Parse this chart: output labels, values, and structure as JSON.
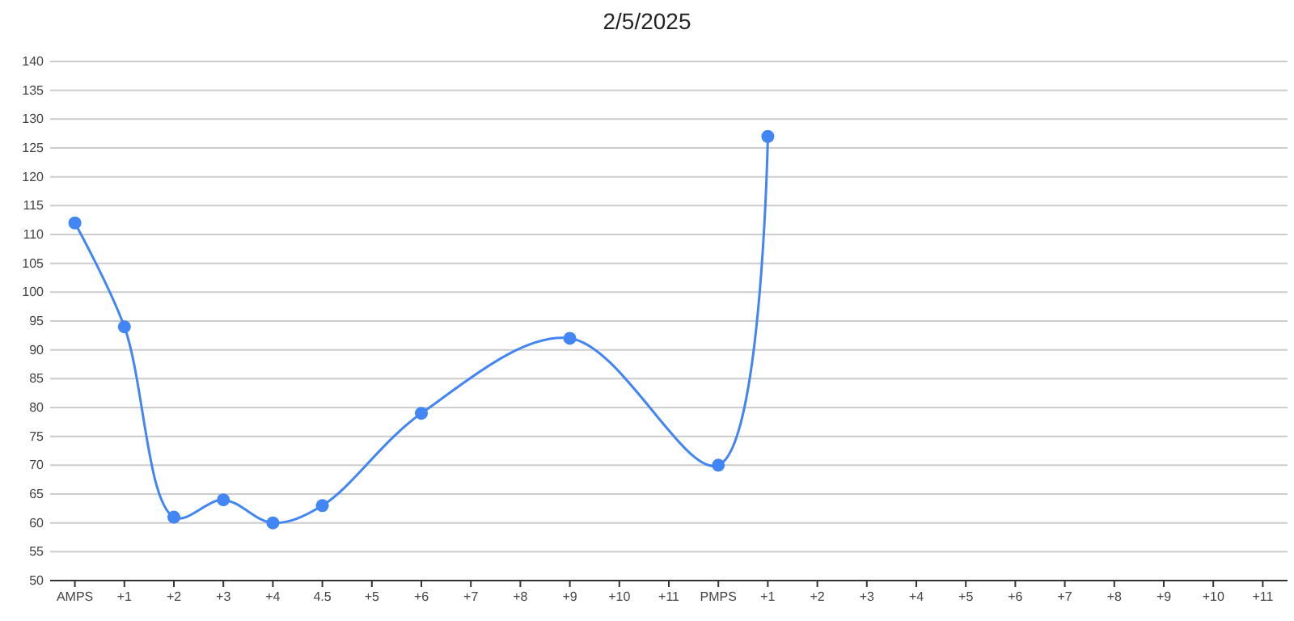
{
  "chart_data": {
    "type": "line",
    "title": "2/5/2025",
    "categories": [
      "AMPS",
      "+1",
      "+2",
      "+3",
      "+4",
      "4.5",
      "+5",
      "+6",
      "+7",
      "+8",
      "+9",
      "+10",
      "+11",
      "PMPS",
      "+1",
      "+2",
      "+3",
      "+4",
      "+5",
      "+6",
      "+7",
      "+8",
      "+9",
      "+10",
      "+11"
    ],
    "series": [
      {
        "color": "#4285f4",
        "values": [
          112,
          94,
          61,
          64,
          60,
          63,
          null,
          79,
          null,
          null,
          92,
          null,
          null,
          70,
          127,
          null,
          null,
          null,
          null,
          null,
          null,
          null,
          null,
          null,
          null
        ]
      }
    ],
    "ylim": [
      50,
      140
    ],
    "yticks": [
      50,
      55,
      60,
      65,
      70,
      75,
      80,
      85,
      90,
      95,
      100,
      105,
      110,
      115,
      120,
      125,
      130,
      135,
      140
    ],
    "grid": "y",
    "marker": "circle"
  }
}
